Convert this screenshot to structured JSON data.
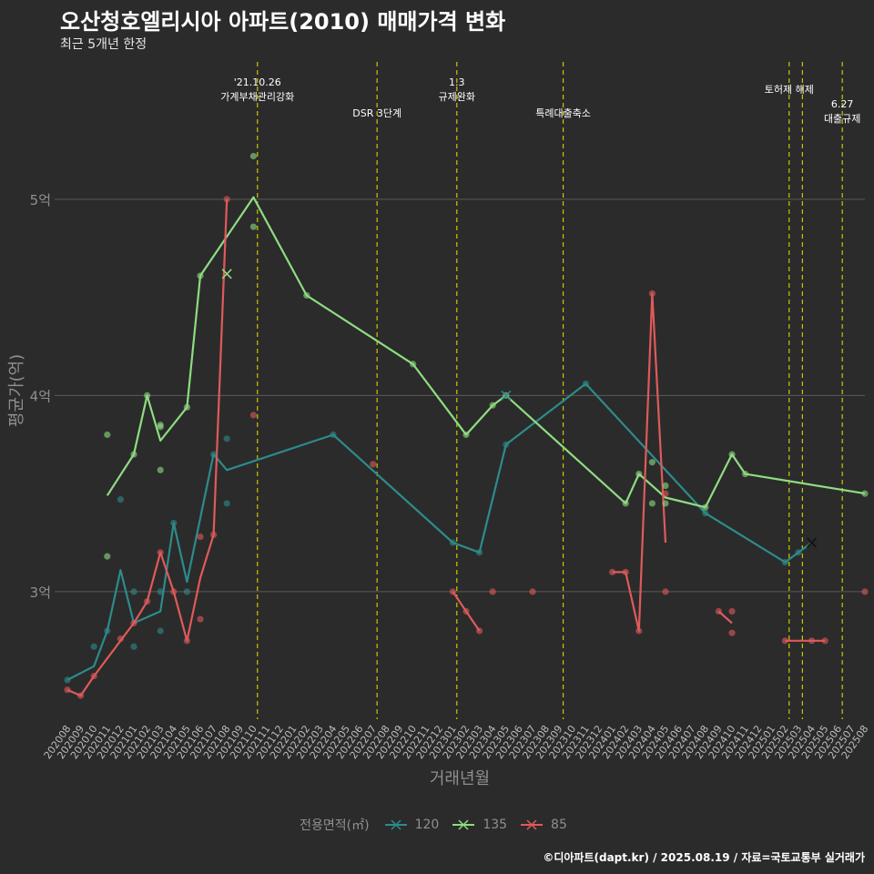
{
  "header": {
    "title": "오산청호엘리시아 아파트(2010) 매매가격 변화",
    "subtitle": "최근 5개년 한정"
  },
  "footer": {
    "caption": "©디아파트(dapt.kr) / 2025.08.19 / 자료=국토교통부 실거래가"
  },
  "legend": {
    "title": "전용면적(㎡)"
  },
  "colors": {
    "background": "#2b2b2b",
    "grid": "#5a5a5a",
    "vline": "#c8c800",
    "text_muted": "#8f8f8f",
    "s120": "#2e8b8b",
    "s135": "#8fdc82",
    "s85": "#e05a5a"
  },
  "chart_data": {
    "type": "line",
    "xlabel": "거래년월",
    "ylabel": "평균가(억)",
    "ylim": [
      2.35,
      5.7
    ],
    "y_ticks": [
      3,
      4,
      5
    ],
    "y_tick_labels": [
      "3억",
      "4억",
      "5억"
    ],
    "grid": true,
    "legend_position": "bottom",
    "x_categories": [
      "202008",
      "202009",
      "202010",
      "202011",
      "202012",
      "202101",
      "202102",
      "202103",
      "202104",
      "202105",
      "202106",
      "202107",
      "202108",
      "202109",
      "202110",
      "202111",
      "202112",
      "202201",
      "202202",
      "202203",
      "202204",
      "202205",
      "202206",
      "202207",
      "202208",
      "202209",
      "202210",
      "202211",
      "202212",
      "202301",
      "202302",
      "202303",
      "202304",
      "202305",
      "202306",
      "202307",
      "202308",
      "202309",
      "202310",
      "202311",
      "202312",
      "202401",
      "202402",
      "202403",
      "202404",
      "202405",
      "202406",
      "202407",
      "202408",
      "202409",
      "202410",
      "202411",
      "202412",
      "202501",
      "202502",
      "202503",
      "202504",
      "202505",
      "202506",
      "202507",
      "202508"
    ],
    "vlines": [
      {
        "x": 14.3,
        "label": "'21.10.26\n가계부채관리강화"
      },
      {
        "x": 23.3,
        "label": "DSR 3단계"
      },
      {
        "x": 29.3,
        "label": "1.3\n규제완화"
      },
      {
        "x": 37.3,
        "label": "특례대출축소"
      },
      {
        "x": 54.3,
        "label": "토허제 해제"
      },
      {
        "x": 55.3,
        "label": ""
      },
      {
        "x": 58.3,
        "label": "6.27\n대출규제"
      }
    ],
    "series": [
      {
        "name": "120",
        "color_key": "s120",
        "line": [
          [
            0,
            2.55
          ],
          [
            2,
            2.62
          ],
          [
            3,
            2.8
          ],
          [
            4,
            3.11
          ],
          [
            5,
            2.84
          ],
          [
            7,
            2.9
          ],
          [
            8,
            3.35
          ],
          [
            9,
            3.05
          ],
          [
            11,
            3.7
          ],
          [
            12,
            3.62
          ],
          [
            20,
            3.8
          ],
          [
            29,
            3.25
          ],
          [
            31,
            3.2
          ],
          [
            33,
            3.75
          ],
          [
            39,
            4.06
          ],
          [
            48,
            3.4
          ],
          [
            54,
            3.15
          ],
          [
            55,
            3.2
          ],
          [
            56,
            3.25
          ]
        ],
        "points": [
          [
            0,
            2.55
          ],
          [
            2,
            2.72
          ],
          [
            3,
            2.8
          ],
          [
            4,
            3.47
          ],
          [
            5,
            2.72
          ],
          [
            5,
            3.0
          ],
          [
            7,
            2.8
          ],
          [
            7,
            3.0
          ],
          [
            8,
            3.35
          ],
          [
            9,
            3.0
          ],
          [
            11,
            3.7
          ],
          [
            12,
            3.78
          ],
          [
            12,
            3.45
          ],
          [
            20,
            3.8
          ],
          [
            29,
            3.25
          ],
          [
            31,
            3.2
          ],
          [
            33,
            3.75
          ],
          [
            39,
            4.06
          ],
          [
            48,
            3.4
          ],
          [
            54,
            3.15
          ],
          [
            55,
            3.2
          ]
        ],
        "markers": [
          [
            33,
            4.0
          ],
          [
            56,
            3.25
          ]
        ]
      },
      {
        "name": "135",
        "color_key": "s135",
        "line": [
          [
            3,
            3.49
          ],
          [
            5,
            3.7
          ],
          [
            6,
            4.0
          ],
          [
            7,
            3.77
          ],
          [
            9,
            3.94
          ],
          [
            10,
            4.61
          ],
          [
            14,
            5.01
          ],
          [
            18,
            4.51
          ],
          [
            26,
            4.16
          ],
          [
            30,
            3.8
          ],
          [
            32,
            3.95
          ],
          [
            33,
            4.0
          ],
          [
            42,
            3.45
          ],
          [
            43,
            3.6
          ],
          [
            45,
            3.48
          ],
          [
            48,
            3.43
          ],
          [
            50,
            3.7
          ],
          [
            51,
            3.6
          ],
          [
            60,
            3.5
          ]
        ],
        "points": [
          [
            3,
            3.8
          ],
          [
            3,
            3.18
          ],
          [
            5,
            3.7
          ],
          [
            6,
            4.0
          ],
          [
            7,
            3.85
          ],
          [
            7,
            3.84
          ],
          [
            7,
            3.62
          ],
          [
            9,
            3.94
          ],
          [
            10,
            4.61
          ],
          [
            14,
            5.22
          ],
          [
            14,
            4.86
          ],
          [
            18,
            4.51
          ],
          [
            26,
            4.16
          ],
          [
            30,
            3.8
          ],
          [
            32,
            3.95
          ],
          [
            33,
            4.0
          ],
          [
            42,
            3.45
          ],
          [
            43,
            3.6
          ],
          [
            44,
            3.66
          ],
          [
            44,
            3.45
          ],
          [
            45,
            3.54
          ],
          [
            45,
            3.45
          ],
          [
            48,
            3.43
          ],
          [
            50,
            3.7
          ],
          [
            51,
            3.6
          ],
          [
            60,
            3.5
          ]
        ],
        "markers": [
          [
            12,
            4.62
          ]
        ]
      },
      {
        "name": "85",
        "color_key": "s85",
        "line_segments": [
          [
            [
              0,
              2.5
            ],
            [
              1,
              2.47
            ],
            [
              2,
              2.57
            ],
            [
              5,
              2.84
            ],
            [
              6,
              2.95
            ],
            [
              7,
              3.2
            ],
            [
              8,
              3.0
            ],
            [
              9,
              2.75
            ],
            [
              10,
              3.07
            ],
            [
              11,
              3.29
            ],
            [
              12,
              5.0
            ]
          ],
          [
            [
              29,
              3.0
            ],
            [
              30,
              2.9
            ],
            [
              31,
              2.8
            ]
          ],
          [
            [
              41,
              3.1
            ],
            [
              42,
              3.1
            ],
            [
              43,
              2.8
            ],
            [
              44,
              4.52
            ],
            [
              45,
              3.25
            ]
          ],
          [
            [
              49,
              2.9
            ],
            [
              50,
              2.84
            ]
          ],
          [
            [
              54,
              2.75
            ],
            [
              55,
              2.75
            ],
            [
              56,
              2.75
            ],
            [
              57,
              2.75
            ]
          ]
        ],
        "points": [
          [
            0,
            2.5
          ],
          [
            1,
            2.47
          ],
          [
            2,
            2.57
          ],
          [
            4,
            2.76
          ],
          [
            5,
            2.84
          ],
          [
            6,
            2.95
          ],
          [
            7,
            3.2
          ],
          [
            8,
            3.0
          ],
          [
            9,
            2.75
          ],
          [
            10,
            3.28
          ],
          [
            10,
            2.86
          ],
          [
            11,
            3.29
          ],
          [
            12,
            5.0
          ],
          [
            14,
            3.9
          ],
          [
            23,
            3.65
          ],
          [
            29,
            3.0
          ],
          [
            30,
            2.9
          ],
          [
            31,
            2.8
          ],
          [
            32,
            3.0
          ],
          [
            35,
            3.0
          ],
          [
            41,
            3.1
          ],
          [
            42,
            3.1
          ],
          [
            43,
            2.8
          ],
          [
            44,
            4.52
          ],
          [
            45,
            3.5
          ],
          [
            45,
            3.0
          ],
          [
            49,
            2.9
          ],
          [
            50,
            2.9
          ],
          [
            50,
            2.79
          ],
          [
            54,
            2.75
          ],
          [
            56,
            2.75
          ],
          [
            57,
            2.75
          ],
          [
            60,
            3.0
          ]
        ],
        "markers": []
      }
    ]
  }
}
